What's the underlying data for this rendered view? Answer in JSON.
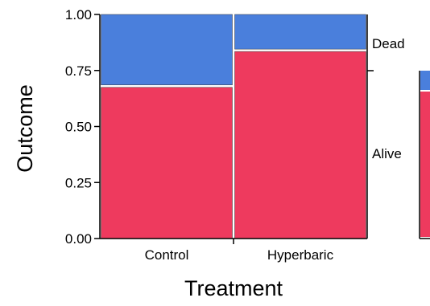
{
  "chart_data": {
    "type": "mosaic",
    "xlabel": "Treatment",
    "ylabel": "Outcome",
    "ylim": [
      0,
      1
    ],
    "yticks": [
      "0.00",
      "0.25",
      "0.50",
      "0.75",
      "1.00"
    ],
    "ytick_values": [
      0,
      0.25,
      0.5,
      0.75,
      1
    ],
    "categories": [
      "Control",
      "Hyperbaric"
    ],
    "category_widths": [
      0.5,
      0.5
    ],
    "outcomes": [
      "Alive",
      "Dead"
    ],
    "series": [
      {
        "name": "Alive",
        "color": "#ee3a5e",
        "values": [
          0.68,
          0.84
        ]
      },
      {
        "name": "Dead",
        "color": "#4a7fdc",
        "values": [
          0.32,
          0.16
        ]
      }
    ],
    "outcome_labels": {
      "dead": "Dead",
      "alive": "Alive"
    },
    "grid": false,
    "legend": "right"
  }
}
